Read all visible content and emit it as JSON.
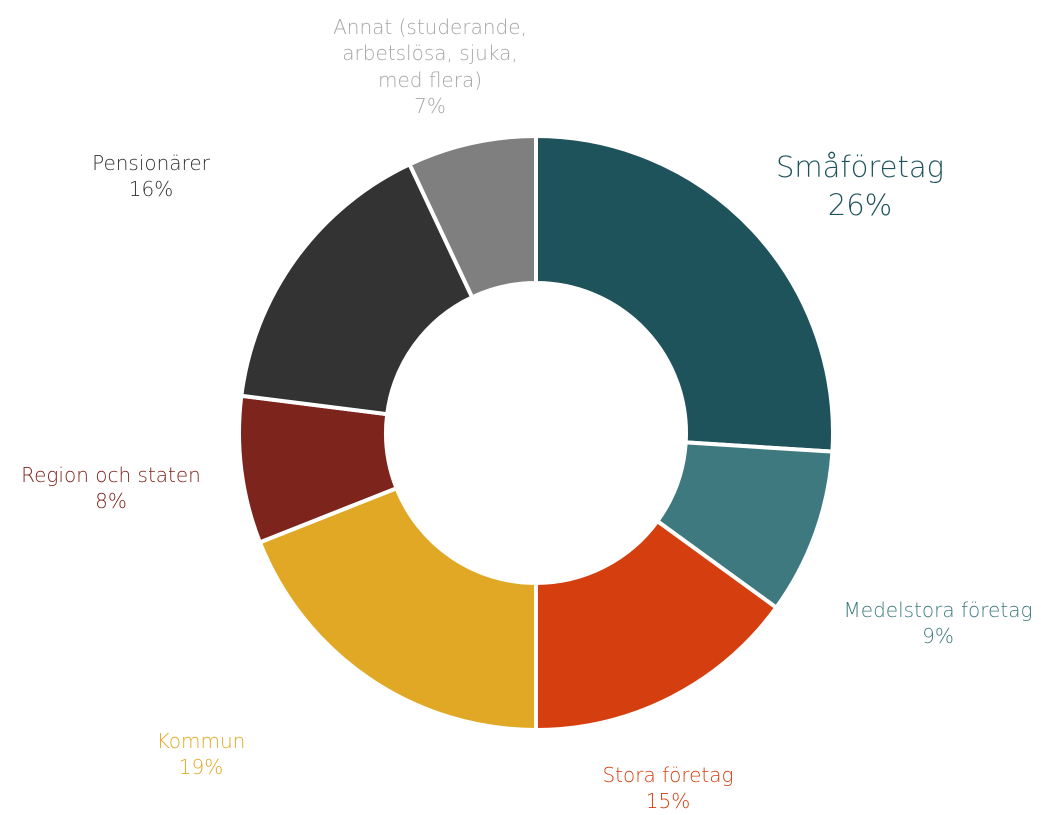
{
  "chart_data": {
    "type": "pie",
    "variant": "donut",
    "slices": [
      {
        "label": "Småföretag",
        "value": 26,
        "value_label": "26%",
        "color": "#1F535C"
      },
      {
        "label": "Medelstora företag",
        "value": 9,
        "value_label": "9%",
        "color": "#3D797E"
      },
      {
        "label": "Stora företag",
        "value": 15,
        "value_label": "15%",
        "color": "#D53E0F"
      },
      {
        "label": "Kommun",
        "value": 19,
        "value_label": "19%",
        "color": "#E1A826"
      },
      {
        "label": "Region och staten",
        "value": 8,
        "value_label": "8%",
        "color": "#7D251D"
      },
      {
        "label": "Pensionärer",
        "value": 16,
        "value_label": "16%",
        "color": "#333333"
      },
      {
        "label": "Annat (studerande,\narbetslösa, sjuka,\nmed flera)",
        "value": 7,
        "value_label": "7%",
        "color": "#7F7F7F",
        "label_color": "#A6A6A6"
      }
    ],
    "start_angle_deg": 0,
    "direction": "clockwise"
  }
}
